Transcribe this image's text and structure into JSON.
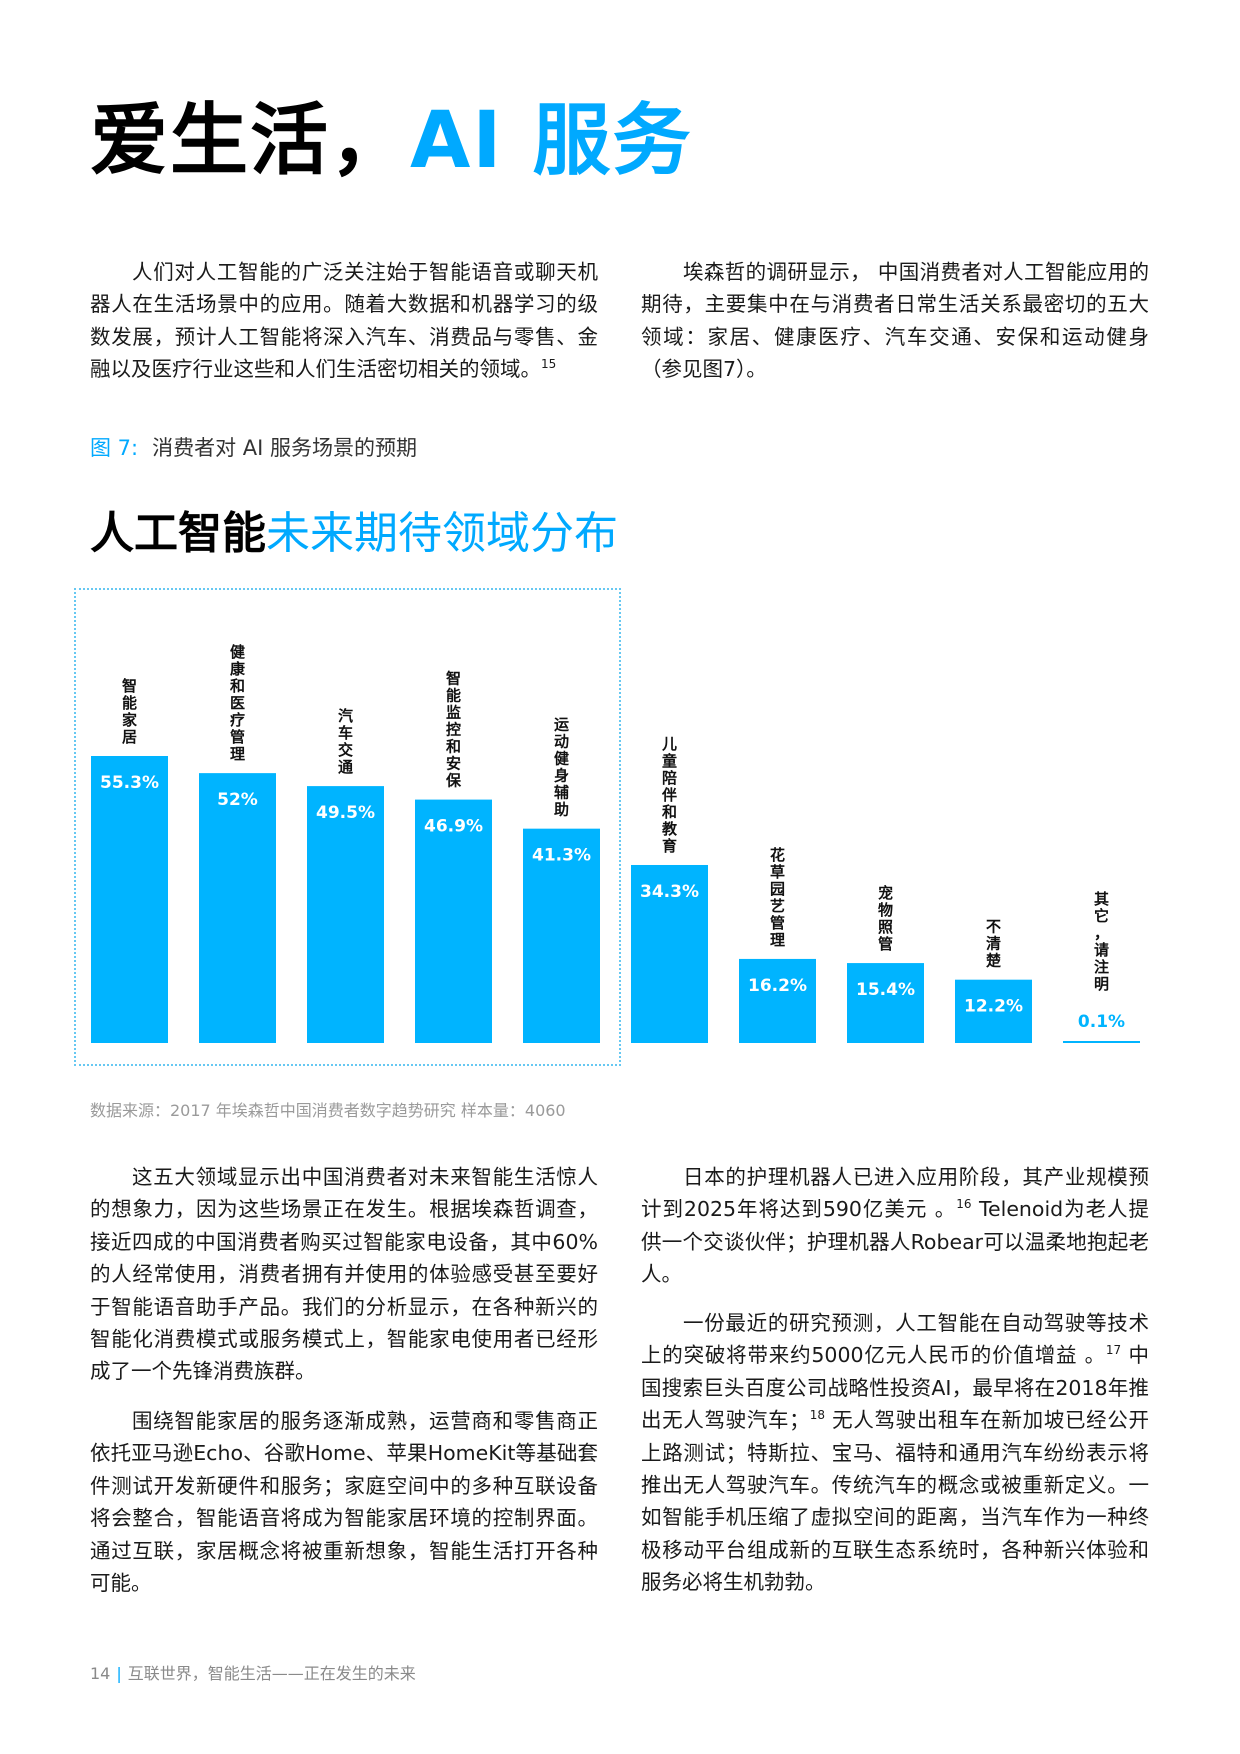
{
  "page": {
    "title_part1": "爱生活，",
    "title_part2": "AI 服务",
    "intro_left": "人们对人工智能的广泛关注始于智能语音或聊天机器人在生活场景中的应用。随着大数据和机器学习的级数发展，预计人工智能将深入汽车、消费品与零售、金融以及医疗行业这些和人们生活密切相关的领域。",
    "intro_left_note": "15",
    "intro_right": "埃森哲的调研显示， 中国消费者对人工智能应用的期待，主要集中在与消费者日常生活关系最密切的五大领域：家居、健康医疗、汽车交通、安保和运动健身（参见图7）。",
    "figure_number": "图 7:",
    "figure_caption": "消费者对 AI 服务场景的预期",
    "chart_heading_bold": "人工智能",
    "chart_heading_light": "未来期待领域分布",
    "source": "数据来源：2017 年埃森哲中国消费者数字趋势研究 样本量：4060",
    "body_left_1": "这五大领域显示出中国消费者对未来智能生活惊人的想象力，因为这些场景正在发生。根据埃森哲调查，接近四成的中国消费者购买过智能家电设备，其中60%的人经常使用，消费者拥有并使用的体验感受甚至要好于智能语音助手产品。我们的分析显示，在各种新兴的智能化消费模式或服务模式上，智能家电使用者已经形成了一个先锋消费族群。",
    "body_left_2": "围绕智能家居的服务逐渐成熟，运营商和零售商正依托亚马逊Echo、谷歌Home、苹果HomeKit等基础套件测试开发新硬件和服务；家庭空间中的多种互联设备将会整合，智能语音将成为智能家居环境的控制界面。通过互联，家居概念将被重新想象，智能生活打开各种可能。",
    "body_right_1a": "日本的护理机器人已进入应用阶段，其产业规模预计到2025年将达到590亿美元 。",
    "body_right_1_note": "16",
    "body_right_1b": " Telenoid为老人提供一个交谈伙伴；护理机器人Robear可以温柔地抱起老人。",
    "body_right_2a": "一份最近的研究预测，人工智能在自动驾驶等技术上的突破将带来约5000亿元人民币的价值增益 。",
    "body_right_2_note1": "17",
    "body_right_2b": " 中国搜索巨头百度公司战略性投资AI，最早将在2018年推出无人驾驶汽车；",
    "body_right_2_note2": "18",
    "body_right_2c": "  无人驾驶出租车在新加坡已经公开上路测试；特斯拉、宝马、福特和通用汽车纷纷表示将推出无人驾驶汽车。传统汽车的概念或被重新定义。一如智能手机压缩了虚拟空间的距离，当汽车作为一种终极移动平台组成新的互联生态系统时，各种新兴体验和服务必将生机勃勃。",
    "footer_page": "14",
    "footer_sep": "|",
    "footer_text": "互联世界，智能生活——正在发生的未来"
  },
  "colors": {
    "accent": "#00a9ff",
    "bar": "#00b4ff",
    "text": "#1a1a1a"
  },
  "chart_data": {
    "type": "bar",
    "title": "人工智能未来期待领域分布",
    "categories": [
      "智能家居",
      "健康和医疗管理",
      "汽车交通",
      "智能监控和安保",
      "运动健身辅助",
      "儿童陪伴和教育",
      "花草园艺管理",
      "宠物照管",
      "不清楚",
      "其它，请注明"
    ],
    "values": [
      55.3,
      52,
      49.5,
      46.9,
      41.3,
      34.3,
      16.2,
      15.4,
      12.2,
      0.1
    ],
    "value_labels": [
      "55.3%",
      "52%",
      "49.5%",
      "46.9%",
      "41.3%",
      "34.3%",
      "16.2%",
      "15.4%",
      "12.2%",
      "0.1%"
    ],
    "unit": "%",
    "ylim": [
      0,
      55.3
    ],
    "grid": false,
    "legend": "none",
    "highlighted_group": "top-5 enclosed in dotted frame"
  }
}
